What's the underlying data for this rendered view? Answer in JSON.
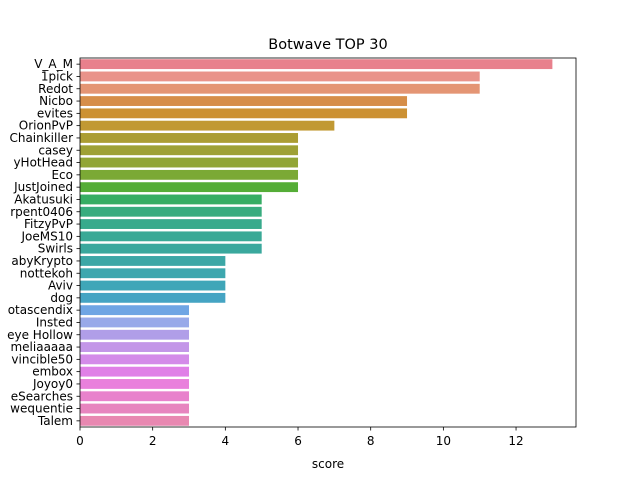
{
  "chart_data": {
    "type": "bar",
    "orientation": "horizontal",
    "title": "Botwave TOP 30",
    "xlabel": "score",
    "ylabel": "",
    "xlim": [
      0,
      13.65
    ],
    "xticks": [
      0,
      2,
      4,
      6,
      8,
      10,
      12
    ],
    "grid": false,
    "categories": [
      "V_A_M",
      "1pick",
      "Redot",
      "Nicbo",
      "evites",
      "OrionPvP",
      "Chainkiller",
      "casey",
      "yHotHead",
      "Eco",
      "JustJoined",
      "Akatusuki",
      "rpent0406",
      "FitzyPvP",
      "JoeMS10",
      "Swirls",
      "abyKrypto",
      "nottekoh",
      "Aviv",
      "dog",
      "otascendix",
      "Insted",
      "eye Hollow",
      "meliaaaaa",
      "vincible50",
      "embox",
      "Joyoy0",
      "eSearches",
      "wequentie",
      "Talem"
    ],
    "values": [
      13,
      11,
      11,
      9,
      9,
      7,
      6,
      6,
      6,
      6,
      6,
      5,
      5,
      5,
      5,
      5,
      4,
      4,
      4,
      4,
      3,
      3,
      3,
      3,
      3,
      3,
      3,
      3,
      3,
      3
    ],
    "colors": [
      "#e8808c",
      "#e9938a",
      "#e49574",
      "#d68e49",
      "#cc9133",
      "#c19933",
      "#ab9d33",
      "#9ea135",
      "#91a535",
      "#7ba935",
      "#55ad37",
      "#36ad63",
      "#38ac7e",
      "#38aa8c",
      "#39a996",
      "#3aa89d",
      "#3ca7a6",
      "#3da7ae",
      "#3fa6b8",
      "#45a4c3",
      "#6fa5e4",
      "#98a9e9",
      "#b09ee8",
      "#c396e8",
      "#d48be9",
      "#e080e7",
      "#e980dc",
      "#e882cc",
      "#e785bf",
      "#e888b1"
    ]
  }
}
